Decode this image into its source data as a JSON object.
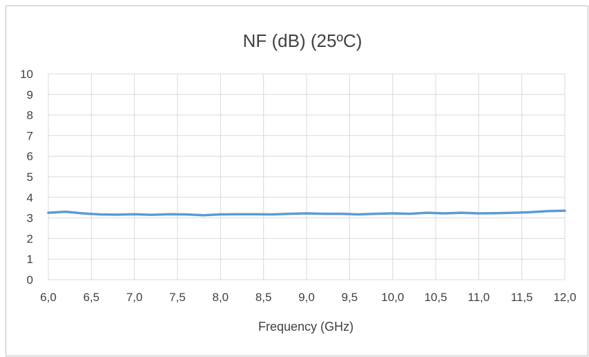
{
  "chart_data": {
    "type": "line",
    "title": "NF (dB) (25ºC)",
    "xlabel": "Frequency (GHz)",
    "ylabel": "",
    "xlim": [
      6.0,
      12.0
    ],
    "ylim": [
      0,
      10
    ],
    "x_ticks": [
      "6,0",
      "6,5",
      "7,0",
      "7,5",
      "8,0",
      "8,5",
      "9,0",
      "9,5",
      "10,0",
      "10,5",
      "11,0",
      "11,5",
      "12,0"
    ],
    "y_ticks": [
      "0",
      "1",
      "2",
      "3",
      "4",
      "5",
      "6",
      "7",
      "8",
      "9",
      "10"
    ],
    "grid": true,
    "legend": "none",
    "series": [
      {
        "color": "#5b9bd5",
        "x": [
          6.0,
          6.2,
          6.4,
          6.6,
          6.8,
          7.0,
          7.2,
          7.4,
          7.6,
          7.8,
          8.0,
          8.2,
          8.4,
          8.6,
          8.8,
          9.0,
          9.2,
          9.4,
          9.6,
          9.8,
          10.0,
          10.2,
          10.4,
          10.6,
          10.8,
          11.0,
          11.2,
          11.4,
          11.6,
          11.8,
          12.0
        ],
        "values": [
          3.25,
          3.3,
          3.22,
          3.17,
          3.16,
          3.18,
          3.15,
          3.18,
          3.17,
          3.13,
          3.17,
          3.18,
          3.18,
          3.17,
          3.2,
          3.22,
          3.2,
          3.2,
          3.17,
          3.2,
          3.22,
          3.2,
          3.25,
          3.22,
          3.25,
          3.22,
          3.23,
          3.25,
          3.28,
          3.33,
          3.35
        ]
      }
    ]
  }
}
